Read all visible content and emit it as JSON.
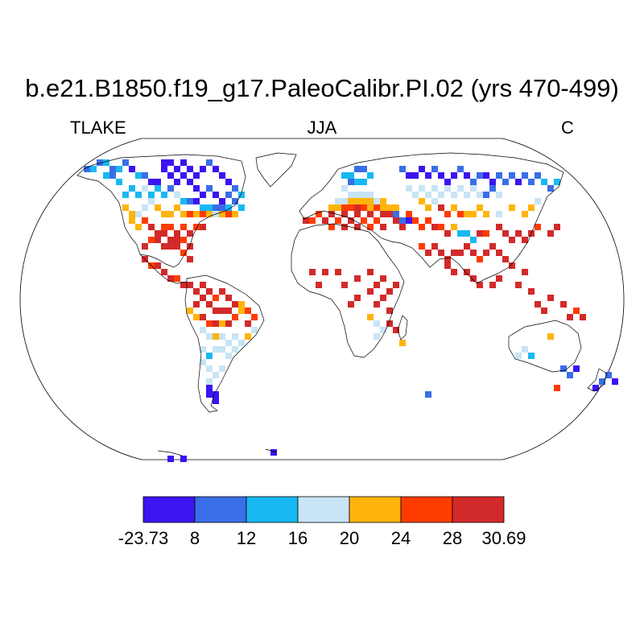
{
  "title": "b.e21.B1850.f19_g17.PaleoCalibr.PI.02 (yrs 470-499)",
  "left_label": "TLAKE",
  "center_label": "JJA",
  "right_label": "C",
  "colorbar": {
    "colors": [
      "#3c14f2",
      "#3a6ee6",
      "#18b8f2",
      "#c8e4f6",
      "#feb40a",
      "#ff3c00",
      "#d22a2a"
    ],
    "labels": [
      "-23.73",
      "8",
      "12",
      "16",
      "20",
      "24",
      "28",
      "30.69"
    ]
  },
  "chart_data": {
    "type": "heatmap",
    "variable": "TLAKE",
    "season": "JJA",
    "units": "C",
    "bins": [
      {
        "min": -23.73,
        "max": 8
      },
      {
        "min": 8,
        "max": 12
      },
      {
        "min": 12,
        "max": 16
      },
      {
        "min": 16,
        "max": 20
      },
      {
        "min": 20,
        "max": 24
      },
      {
        "min": 24,
        "max": 28
      },
      {
        "min": 28,
        "max": 30.69
      }
    ]
  }
}
